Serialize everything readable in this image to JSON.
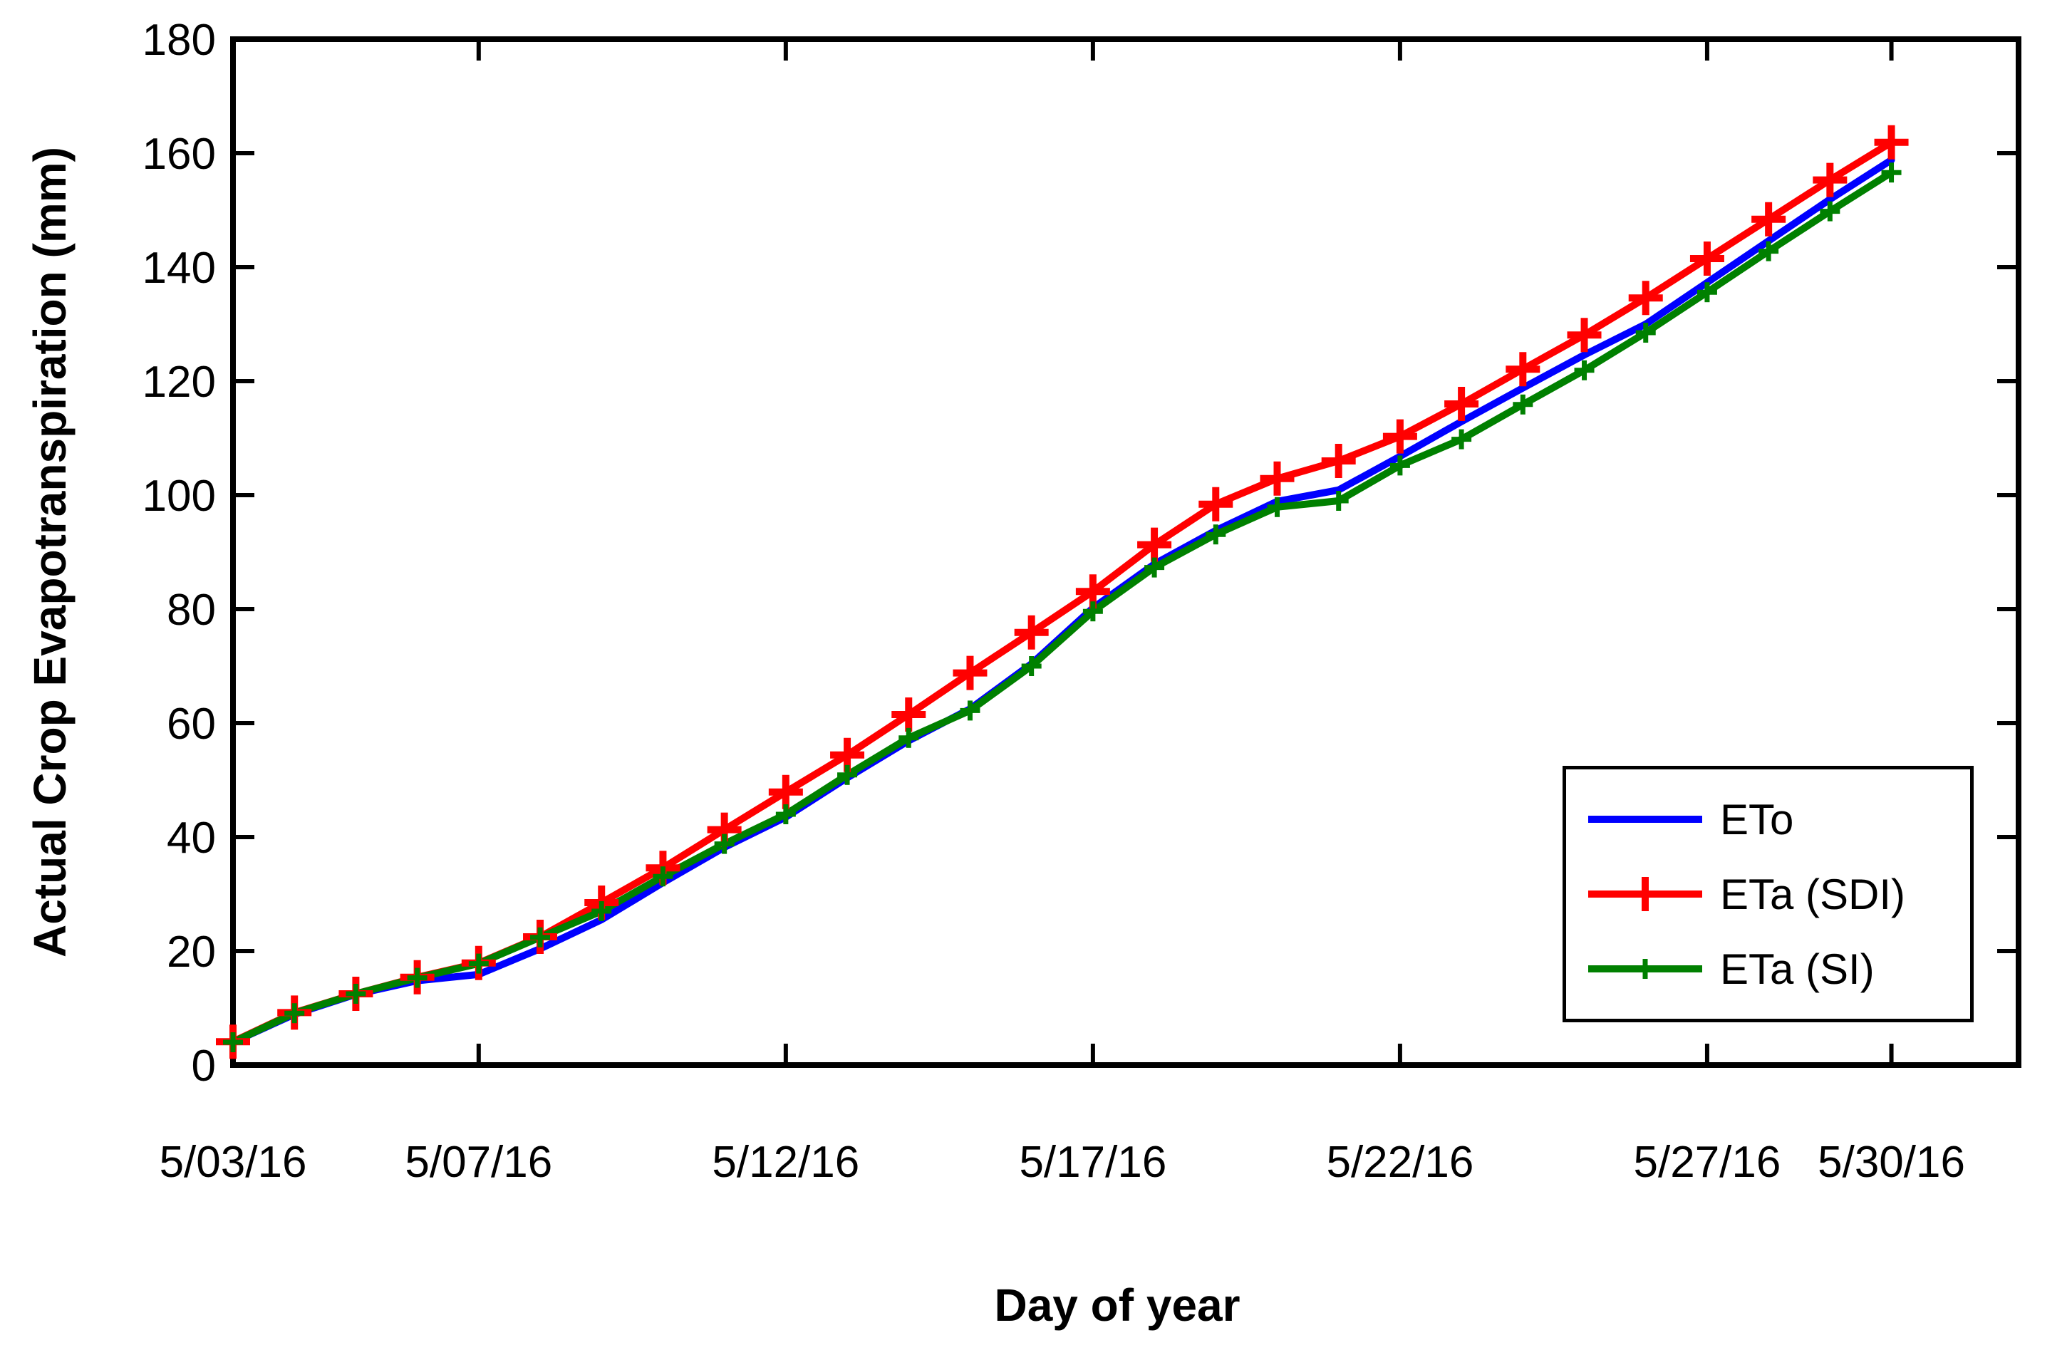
{
  "figure": {
    "background": "#ffffff",
    "text_color": "#000000",
    "axis_color": "#000000"
  },
  "chart_data": {
    "type": "line",
    "title": "",
    "xlabel": "Day of year",
    "ylabel": "Actual Crop Evapotranspiration (mm)",
    "ylim": [
      0,
      180
    ],
    "yticks": [
      0,
      20,
      40,
      60,
      80,
      100,
      120,
      140,
      160,
      180
    ],
    "xlim_days": [
      3,
      32.07
    ],
    "xticks": [
      {
        "day": 3,
        "label": "5/03/16"
      },
      {
        "day": 7,
        "label": "5/07/16"
      },
      {
        "day": 12,
        "label": "5/12/16"
      },
      {
        "day": 17,
        "label": "5/17/16"
      },
      {
        "day": 22,
        "label": "5/22/16"
      },
      {
        "day": 27,
        "label": "5/27/16"
      },
      {
        "day": 30,
        "label": "5/30/16"
      }
    ],
    "grid": false,
    "box": true,
    "legend_position": "lower right",
    "days": [
      3,
      4,
      5,
      6,
      7,
      8,
      9,
      10,
      11,
      12,
      13,
      14,
      15,
      16,
      17,
      18,
      19,
      20,
      21,
      22,
      23,
      24,
      25,
      26,
      27,
      28,
      29,
      30
    ],
    "series": [
      {
        "name": "ETo",
        "color": "#0000ff",
        "marker": "none",
        "line_width": 10,
        "values": [
          4.0,
          8.9,
          12.4,
          14.8,
          15.9,
          20.4,
          25.5,
          32.0,
          38.2,
          43.5,
          50.4,
          56.9,
          62.5,
          70.4,
          80.2,
          87.9,
          93.8,
          98.9,
          100.9,
          106.8,
          112.9,
          118.8,
          124.6,
          130.0,
          137.3,
          144.6,
          151.9,
          158.8
        ]
      },
      {
        "name": "ETa (SDI)",
        "color": "#ff0000",
        "marker": "plus",
        "marker_half": 24,
        "marker_stroke": 10,
        "line_width": 10,
        "values": [
          4.1,
          9.2,
          12.5,
          15.4,
          17.9,
          22.5,
          28.5,
          34.6,
          41.3,
          47.9,
          54.4,
          61.5,
          68.8,
          75.9,
          83.1,
          91.3,
          98.4,
          102.9,
          106.0,
          110.3,
          116.0,
          122.1,
          128.1,
          134.6,
          141.5,
          148.4,
          155.3,
          161.9
        ]
      },
      {
        "name": "ETa (SI)",
        "color": "#008000",
        "marker": "plus",
        "marker_half": 14,
        "marker_stroke": 7,
        "line_width": 10,
        "values": [
          4.0,
          9.1,
          12.5,
          15.3,
          17.8,
          22.4,
          27.0,
          33.1,
          38.8,
          44.0,
          50.9,
          57.4,
          62.2,
          70.0,
          79.6,
          87.3,
          93.1,
          97.9,
          99.0,
          105.2,
          109.8,
          115.9,
          121.9,
          128.5,
          135.6,
          142.8,
          149.8,
          156.6
        ]
      }
    ]
  }
}
